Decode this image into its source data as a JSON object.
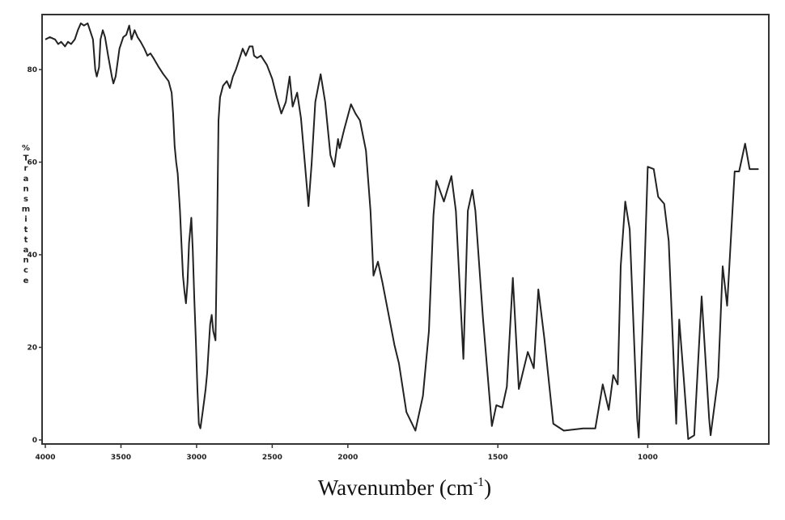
{
  "chart_data": {
    "type": "line",
    "title": "",
    "xlabel": "Wavenumber (cm-1)",
    "xlabel_main": "Wavenumber (cm",
    "xlabel_sup": "-1",
    "xlabel_close": ")",
    "ylabel": "% Transmittance",
    "ylabel_letters": [
      "%",
      "T",
      "r",
      "a",
      "n",
      "s",
      "m",
      "i",
      "t",
      "t",
      "a",
      "n",
      "c",
      "e"
    ],
    "xlim": [
      4000,
      600
    ],
    "ylim": [
      0,
      92
    ],
    "x_scale_note": "scale doubles below 2000",
    "grid": false,
    "x_ticks": [
      4000,
      3500,
      3000,
      2500,
      2000,
      1500,
      1000
    ],
    "x_tick_labels": [
      "4000",
      "3500",
      "3000",
      "2500",
      "2000",
      "1500",
      "1000"
    ],
    "y_ticks": [
      0,
      20,
      40,
      60,
      80
    ],
    "y_tick_labels": [
      "0",
      "20",
      "40",
      "60",
      "80"
    ],
    "line_color": "#222222",
    "series": [
      {
        "x": [
          4000,
          3970,
          3935,
          3915,
          3895,
          3870,
          3850,
          3830,
          3805,
          3785,
          3765,
          3745,
          3720,
          3700,
          3685,
          3670,
          3660,
          3645,
          3635,
          3620,
          3605,
          3585,
          3560,
          3550,
          3535,
          3510,
          3485,
          3465,
          3445,
          3430,
          3410,
          3390,
          3370,
          3345,
          3325,
          3305,
          3285,
          3250,
          3220,
          3185,
          3165,
          3155,
          3145,
          3135,
          3125,
          3110,
          3100,
          3090,
          3080,
          3070,
          3060,
          3050,
          3035,
          3025,
          3015,
          3005,
          2995,
          2985,
          2975,
          2960,
          2950,
          2940,
          2930,
          2920,
          2910,
          2900,
          2890,
          2875,
          2865,
          2855,
          2845,
          2825,
          2800,
          2780,
          2760,
          2740,
          2715,
          2695,
          2675,
          2650,
          2630,
          2620,
          2600,
          2575,
          2555,
          2535,
          2500,
          2470,
          2440,
          2410,
          2385,
          2365,
          2335,
          2310,
          2285,
          2260,
          2240,
          2215,
          2180,
          2150,
          2115,
          2090,
          2065,
          2055,
          2025,
          1990,
          1975,
          1960,
          1940,
          1925,
          1915,
          1900,
          1885,
          1845,
          1830,
          1805,
          1775,
          1750,
          1730,
          1715,
          1705,
          1680,
          1655,
          1640,
          1615,
          1600,
          1585,
          1575,
          1550,
          1520,
          1505,
          1485,
          1470,
          1450,
          1430,
          1400,
          1380,
          1365,
          1345,
          1315,
          1280,
          1215,
          1175,
          1150,
          1130,
          1115,
          1100,
          1090,
          1075,
          1060,
          1035,
          1030,
          1015,
          1000,
          980,
          965,
          945,
          930,
          905,
          895,
          880,
          865,
          845,
          820,
          795,
          790,
          765,
          750,
          735,
          710,
          695,
          675,
          660,
          630
        ],
        "y": [
          86.5,
          87,
          86.5,
          85.5,
          86,
          85,
          86,
          85.5,
          86.5,
          88.5,
          90,
          89.5,
          90,
          88,
          86.5,
          80,
          78.5,
          80.5,
          86.5,
          88.5,
          87,
          83,
          78.5,
          77,
          78.5,
          84.5,
          87,
          87.5,
          89.5,
          86.5,
          88.5,
          87,
          86,
          84.5,
          83,
          83.5,
          82.5,
          80.5,
          79,
          77.5,
          75,
          70.5,
          63.5,
          60,
          57.5,
          49.5,
          42.5,
          35.5,
          32,
          29.5,
          34,
          42.5,
          48,
          41,
          30.5,
          21.5,
          11.2,
          3.5,
          2.5,
          6,
          8.5,
          11,
          14.5,
          20,
          25,
          27,
          23.5,
          21.5,
          42.5,
          69,
          74,
          76.5,
          77.5,
          76,
          78.5,
          80,
          82.5,
          84.5,
          83,
          85,
          85,
          83,
          82.5,
          83,
          82,
          81,
          78,
          74,
          70.5,
          73,
          78.5,
          72,
          75,
          69.5,
          60,
          50.5,
          59.5,
          73,
          79,
          73,
          61.5,
          59,
          65,
          63,
          67,
          72.5,
          70.5,
          69,
          62.5,
          49.5,
          35.5,
          38.5,
          34,
          20.5,
          16.5,
          6,
          2,
          9.5,
          23.5,
          48.5,
          56,
          51.5,
          57,
          49.5,
          17.5,
          49.5,
          54,
          49.5,
          26.5,
          3,
          7.5,
          7,
          11.5,
          35,
          11,
          19,
          15.5,
          32.5,
          22,
          3.5,
          2,
          2.5,
          2.5,
          12,
          6.5,
          14,
          12,
          37.5,
          51.5,
          45.5,
          4.5,
          0.5,
          28,
          59,
          58.5,
          52.5,
          51,
          43,
          3.5,
          26,
          13.5,
          0.2,
          1,
          31,
          4.5,
          1,
          13.5,
          37.5,
          29,
          58,
          58,
          64,
          58.5,
          58.5
        ]
      }
    ]
  }
}
